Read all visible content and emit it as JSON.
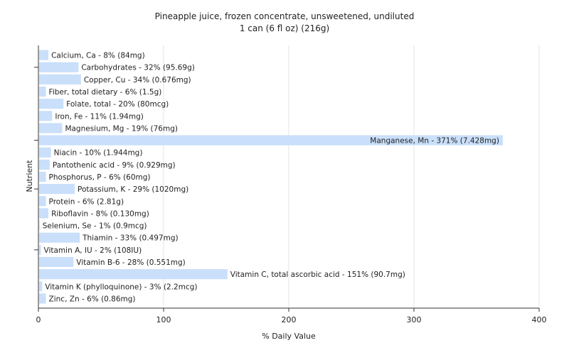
{
  "chart_data": {
    "type": "bar",
    "orientation": "horizontal",
    "title": "Pineapple juice, frozen concentrate, unsweetened, undiluted",
    "subtitle": "1 can (6 fl oz) (216g)",
    "xlabel": "% Daily Value",
    "ylabel": "Nutrient",
    "xlim": [
      0,
      400
    ],
    "xticks": [
      0,
      100,
      200,
      300,
      400
    ],
    "grid": true,
    "bar_color": "#c9dffa",
    "categories": [
      "Calcium, Ca",
      "Carbohydrates",
      "Copper, Cu",
      "Fiber, total dietary",
      "Folate, total",
      "Iron, Fe",
      "Magnesium, Mg",
      "Manganese, Mn",
      "Niacin",
      "Pantothenic acid",
      "Phosphorus, P",
      "Potassium, K",
      "Protein",
      "Riboflavin",
      "Selenium, Se",
      "Thiamin",
      "Vitamin A, IU",
      "Vitamin B-6",
      "Vitamin C, total ascorbic acid",
      "Vitamin K (phylloquinone)",
      "Zinc, Zn"
    ],
    "values": [
      8,
      32,
      34,
      6,
      20,
      11,
      19,
      371,
      10,
      9,
      6,
      29,
      6,
      8,
      1,
      33,
      2,
      28,
      151,
      3,
      6
    ],
    "labels": [
      "Calcium, Ca - 8% (84mg)",
      "Carbohydrates - 32% (95.69g)",
      "Copper, Cu - 34% (0.676mg)",
      "Fiber, total dietary - 6% (1.5g)",
      "Folate, total - 20% (80mcg)",
      "Iron, Fe - 11% (1.94mg)",
      "Magnesium, Mg - 19% (76mg)",
      "Manganese, Mn - 371% (7.428mg)",
      "Niacin - 10% (1.944mg)",
      "Pantothenic acid - 9% (0.929mg)",
      "Phosphorus, P - 6% (60mg)",
      "Potassium, K - 29% (1020mg)",
      "Protein - 6% (2.81g)",
      "Riboflavin - 8% (0.130mg)",
      "Selenium, Se - 1% (0.9mcg)",
      "Thiamin - 33% (0.497mg)",
      "Vitamin A, IU - 2% (108IU)",
      "Vitamin B-6 - 28% (0.551mg)",
      "Vitamin C, total ascorbic acid - 151% (90.7mg)",
      "Vitamin K (phylloquinone) - 3% (2.2mcg)",
      "Zinc, Zn - 6% (0.86mg)"
    ]
  }
}
